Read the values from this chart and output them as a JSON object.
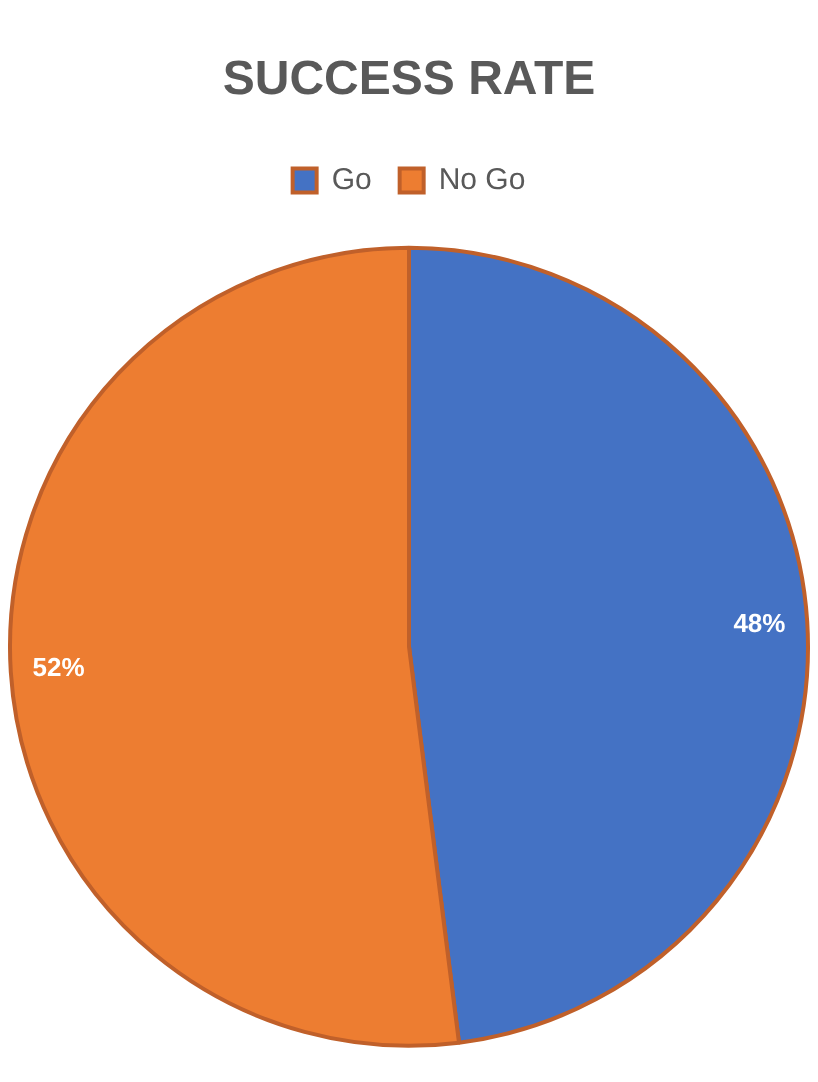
{
  "chart_data": {
    "type": "pie",
    "title": "SUCCESS RATE",
    "categories": [
      "Go",
      "No Go"
    ],
    "values": [
      48,
      52
    ],
    "colors": [
      "#4472c4",
      "#ed7d31"
    ],
    "value_labels": [
      "48%",
      "52%"
    ],
    "legend": "top"
  }
}
